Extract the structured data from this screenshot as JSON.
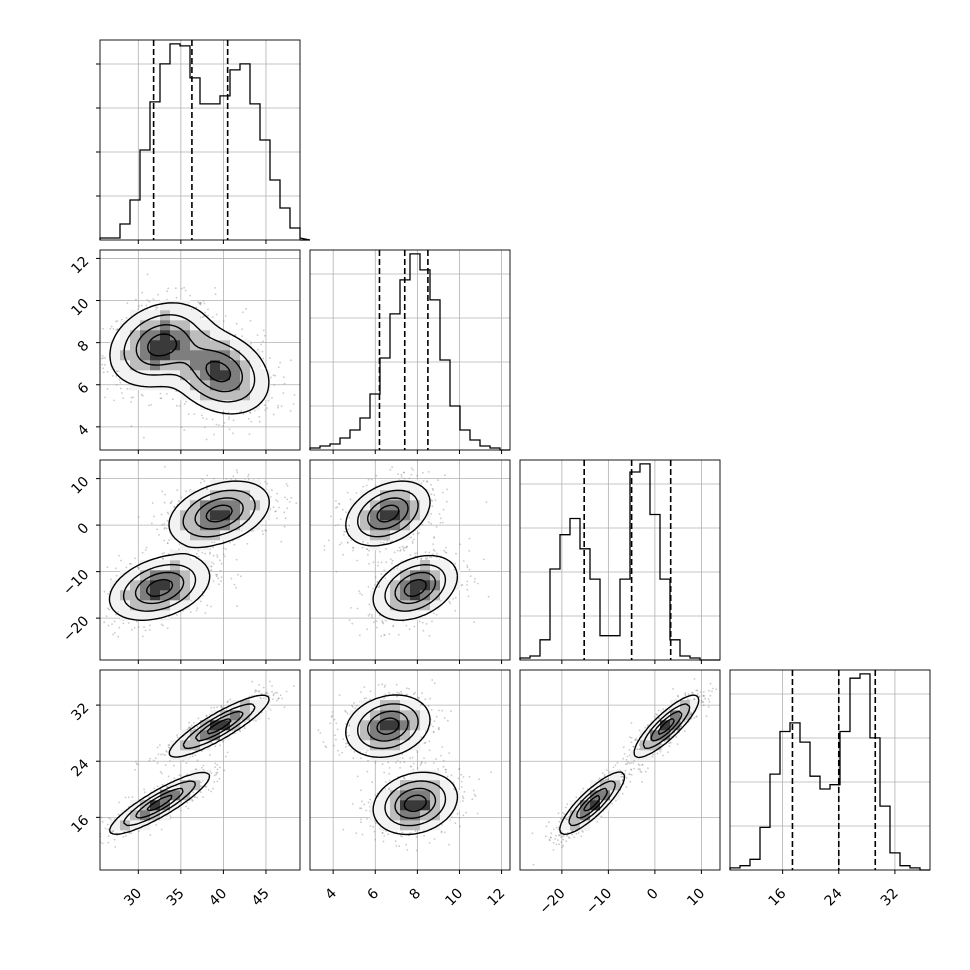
{
  "chart_data": {
    "type": "corner",
    "grid": true,
    "parameters": [
      {
        "range": [
          25.5,
          49.0
        ],
        "ticks": [
          30,
          35,
          40,
          45
        ],
        "quantiles": [
          31.8,
          36.3,
          40.5
        ],
        "hist_edges_start": 25.5,
        "hist_bin_width": 1.175,
        "hist_counts": [
          1,
          1,
          8,
          20,
          45,
          69,
          88,
          98,
          97,
          81,
          68,
          68,
          72,
          85,
          88,
          68,
          50,
          30,
          16,
          6,
          1,
          0
        ]
      },
      {
        "range": [
          2.9,
          12.4
        ],
        "ticks": [
          4,
          6,
          8,
          10,
          12
        ],
        "quantiles": [
          6.2,
          7.4,
          8.5
        ],
        "hist_edges_start": 2.9,
        "hist_bin_width": 0.475,
        "hist_counts": [
          1,
          2,
          3,
          6,
          10,
          16,
          28,
          46,
          68,
          85,
          98,
          90,
          75,
          45,
          22,
          10,
          5,
          2,
          1,
          0
        ]
      },
      {
        "range": [
          -29.0,
          14.0
        ],
        "ticks": [
          -20,
          -10,
          0,
          10
        ],
        "quantiles": [
          -15.2,
          -5.0,
          3.4
        ],
        "hist_edges_start": -29.0,
        "hist_bin_width": 2.15,
        "hist_counts": [
          1,
          2,
          10,
          45,
          62,
          70,
          55,
          40,
          12,
          12,
          40,
          93,
          97,
          72,
          40,
          10,
          2,
          1,
          0,
          0
        ]
      },
      {
        "range": [
          8.5,
          37.0
        ],
        "ticks": [
          16,
          24,
          32
        ],
        "quantiles": [
          17.4,
          24.0,
          29.2
        ],
        "hist_edges_start": 8.5,
        "hist_bin_width": 1.425,
        "hist_counts": [
          1,
          2,
          5,
          20,
          45,
          65,
          69,
          60,
          44,
          38,
          40,
          65,
          90,
          92,
          62,
          30,
          8,
          2,
          1,
          0
        ]
      }
    ],
    "clusters": [
      {
        "weight": 0.5,
        "mean": [
          32.5,
          7.9,
          -13.5,
          18.0
        ],
        "sd": [
          2.8,
          0.95,
          3.3,
          2.1
        ],
        "correlations": {
          "0-1": 0.25,
          "0-2": 0.35,
          "0-3": 0.88,
          "1-2": 0.35,
          "1-3": 0.2,
          "2-3": 0.85
        }
      },
      {
        "weight": 0.5,
        "mean": [
          39.5,
          6.6,
          2.5,
          29.0
        ],
        "sd": [
          2.8,
          0.95,
          3.3,
          2.1
        ],
        "correlations": {
          "0-1": -0.25,
          "0-2": 0.35,
          "0-3": 0.88,
          "1-2": 0.35,
          "1-3": 0.2,
          "2-3": 0.85
        }
      }
    ]
  }
}
